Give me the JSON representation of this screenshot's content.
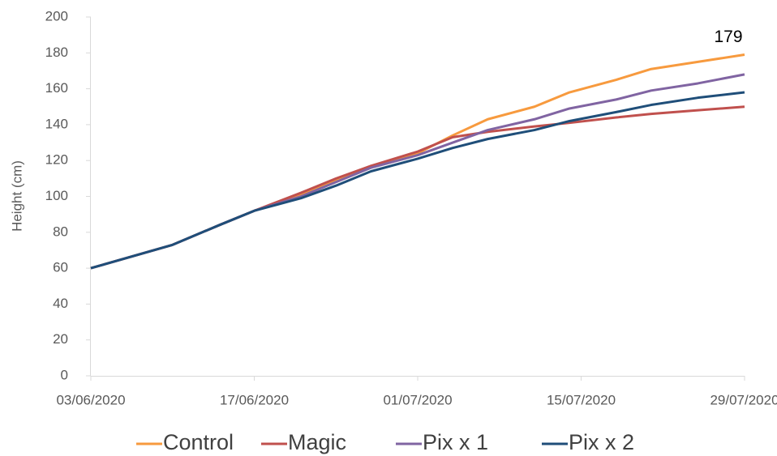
{
  "chart_data": {
    "type": "line",
    "y_label": "Height (cm)",
    "x": [
      "03/06/2020",
      "10/06/2020",
      "14/06/2020",
      "17/06/2020",
      "21/06/2020",
      "24/06/2020",
      "27/06/2020",
      "01/07/2020",
      "04/07/2020",
      "07/07/2020",
      "11/07/2020",
      "14/07/2020",
      "18/07/2020",
      "21/07/2020",
      "25/07/2020",
      "29/07/2020"
    ],
    "series": [
      {
        "name": "Control",
        "color": "#f79a3e",
        "values": [
          60,
          73,
          84,
          92,
          101,
          109,
          117,
          124,
          134,
          143,
          150,
          158,
          165,
          171,
          175,
          179
        ]
      },
      {
        "name": "Magic",
        "color": "#c0504d",
        "values": [
          60,
          73,
          84,
          92,
          102,
          110,
          117,
          125,
          133,
          136,
          139,
          141,
          144,
          146,
          148,
          150
        ]
      },
      {
        "name": "Pix x 1",
        "color": "#8064a2",
        "values": [
          60,
          73,
          84,
          92,
          100,
          108,
          116,
          123,
          130,
          137,
          143,
          149,
          154,
          159,
          163,
          168
        ]
      },
      {
        "name": "Pix x 2",
        "color": "#1f4e79",
        "values": [
          60,
          73,
          84,
          92,
          99,
          106,
          114,
          121,
          127,
          132,
          137,
          142,
          147,
          151,
          155,
          158
        ]
      }
    ],
    "xlim": [
      "03/06/2020",
      "29/07/2020"
    ],
    "xticks": [
      "03/06/2020",
      "17/06/2020",
      "01/07/2020",
      "15/07/2020",
      "29/07/2020"
    ],
    "ylim": [
      0,
      200
    ],
    "yticks": [
      0,
      20,
      40,
      60,
      80,
      100,
      120,
      140,
      160,
      180,
      200
    ],
    "grid": false,
    "legend": "bottom"
  }
}
